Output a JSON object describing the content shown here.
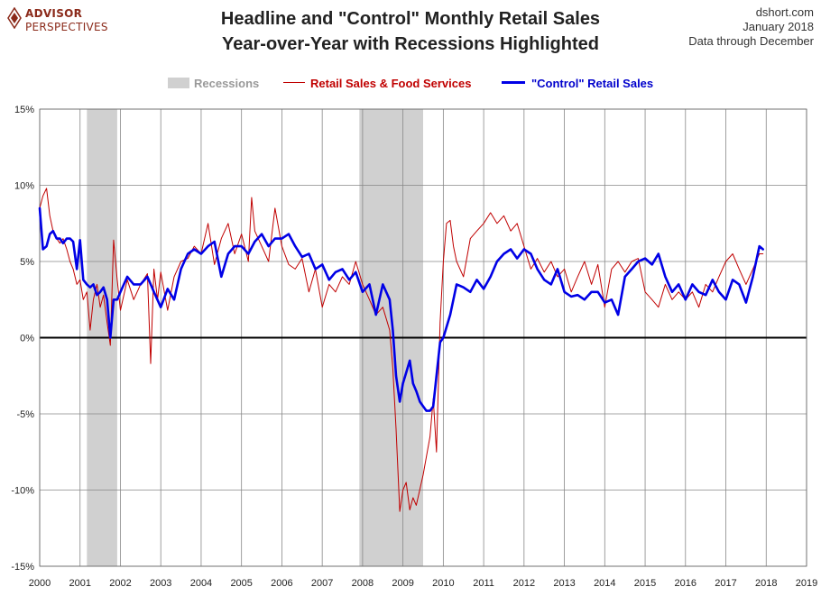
{
  "logo": {
    "line1": "ADVISOR",
    "line2": "PERSPECTIVES",
    "color": "#8b2a1a"
  },
  "header": {
    "title_line1": "Headline and \"Control\" Monthly Retail Sales",
    "title_line2": "Year-over-Year with Recessions Highlighted",
    "source": "dshort.com",
    "date": "January 2018",
    "data_through": "Data through December"
  },
  "legend": {
    "recessions_label": "Recessions",
    "retail_label": "Retail Sales & Food Services",
    "control_label": "\"Control\" Retail Sales"
  },
  "chart_data": {
    "type": "line",
    "title": "Headline and \"Control\" Monthly Retail Sales Year-over-Year with Recessions Highlighted",
    "xlabel": "",
    "ylabel": "",
    "xlim": [
      2000,
      2019
    ],
    "ylim": [
      -15,
      15
    ],
    "y_ticks": [
      15,
      10,
      5,
      0,
      -5,
      -10,
      -15
    ],
    "y_tick_labels": [
      "15%",
      "10%",
      "5%",
      "0%",
      "-5%",
      "-10%",
      "-15%"
    ],
    "x_ticks": [
      2000,
      2001,
      2002,
      2003,
      2004,
      2005,
      2006,
      2007,
      2008,
      2009,
      2010,
      2011,
      2012,
      2013,
      2014,
      2015,
      2016,
      2017,
      2018,
      2019
    ],
    "x_tick_labels": [
      "2000",
      "2001",
      "2002",
      "2003",
      "2004",
      "2005",
      "2006",
      "2007",
      "2008",
      "2009",
      "2010",
      "2011",
      "2012",
      "2013",
      "2014",
      "2015",
      "2016",
      "2017",
      "2018",
      "2019"
    ],
    "grid": true,
    "legend_position": "top-center",
    "recessions": [
      {
        "start": 2001.17,
        "end": 2001.92
      },
      {
        "start": 2007.92,
        "end": 2009.5
      }
    ],
    "colors": {
      "retail": "#c00000",
      "control": "#0000e6",
      "recession": "#d0d0d0",
      "zero_line": "#000000",
      "grid": "#888888"
    },
    "series": [
      {
        "name": "Retail Sales & Food Services",
        "x": [
          2000.0,
          2000.08,
          2000.17,
          2000.25,
          2000.33,
          2000.42,
          2000.5,
          2000.58,
          2000.67,
          2000.75,
          2000.83,
          2000.92,
          2001.0,
          2001.08,
          2001.17,
          2001.25,
          2001.33,
          2001.42,
          2001.5,
          2001.58,
          2001.67,
          2001.75,
          2001.83,
          2001.92,
          2002.0,
          2002.17,
          2002.33,
          2002.5,
          2002.67,
          2002.75,
          2002.83,
          2002.92,
          2003.0,
          2003.17,
          2003.33,
          2003.5,
          2003.67,
          2003.83,
          2004.0,
          2004.17,
          2004.33,
          2004.5,
          2004.67,
          2004.83,
          2005.0,
          2005.17,
          2005.25,
          2005.33,
          2005.5,
          2005.67,
          2005.83,
          2006.0,
          2006.17,
          2006.33,
          2006.5,
          2006.67,
          2006.83,
          2007.0,
          2007.17,
          2007.33,
          2007.5,
          2007.67,
          2007.83,
          2008.0,
          2008.17,
          2008.33,
          2008.5,
          2008.67,
          2008.75,
          2008.83,
          2008.92,
          2009.0,
          2009.08,
          2009.17,
          2009.25,
          2009.33,
          2009.5,
          2009.67,
          2009.75,
          2009.83,
          2009.92,
          2010.0,
          2010.08,
          2010.17,
          2010.25,
          2010.33,
          2010.5,
          2010.67,
          2010.83,
          2011.0,
          2011.17,
          2011.33,
          2011.5,
          2011.67,
          2011.83,
          2012.0,
          2012.17,
          2012.33,
          2012.5,
          2012.67,
          2012.83,
          2013.0,
          2013.17,
          2013.33,
          2013.5,
          2013.67,
          2013.83,
          2014.0,
          2014.17,
          2014.33,
          2014.5,
          2014.67,
          2014.83,
          2015.0,
          2015.17,
          2015.33,
          2015.5,
          2015.67,
          2015.83,
          2016.0,
          2016.17,
          2016.33,
          2016.5,
          2016.67,
          2016.83,
          2017.0,
          2017.17,
          2017.33,
          2017.5,
          2017.67,
          2017.83,
          2017.92
        ],
        "values": [
          8.5,
          9.3,
          9.8,
          8.0,
          7.0,
          6.5,
          6.2,
          6.5,
          5.8,
          5.0,
          4.5,
          3.5,
          3.8,
          2.5,
          3.0,
          0.5,
          2.5,
          3.5,
          2.0,
          2.8,
          1.0,
          -0.5,
          6.4,
          3.8,
          1.8,
          3.8,
          2.5,
          3.5,
          4.2,
          -1.7,
          4.5,
          2.5,
          4.3,
          1.8,
          4.0,
          5.0,
          5.2,
          6.0,
          5.5,
          7.5,
          4.8,
          6.5,
          7.5,
          5.5,
          6.8,
          5.0,
          9.2,
          7.0,
          6.0,
          5.0,
          8.5,
          6.0,
          4.8,
          4.5,
          5.2,
          3.0,
          4.5,
          2.0,
          3.5,
          3.0,
          4.0,
          3.5,
          5.0,
          3.5,
          2.5,
          1.5,
          2.0,
          0.5,
          -2.0,
          -6.0,
          -11.4,
          -10.0,
          -9.5,
          -11.3,
          -10.5,
          -11.0,
          -9.0,
          -6.5,
          -4.0,
          -7.5,
          1.0,
          5.0,
          7.5,
          7.7,
          6.0,
          5.0,
          4.0,
          6.5,
          7.0,
          7.5,
          8.2,
          7.5,
          8.0,
          7.0,
          7.5,
          6.0,
          4.5,
          5.2,
          4.3,
          5.0,
          4.0,
          4.5,
          3.0,
          4.0,
          5.0,
          3.5,
          4.8,
          2.0,
          4.5,
          5.0,
          4.3,
          5.0,
          5.2,
          3.0,
          2.5,
          2.0,
          3.5,
          2.5,
          3.0,
          2.5,
          3.0,
          2.0,
          3.5,
          3.0,
          4.0,
          5.0,
          5.5,
          4.5,
          3.5,
          4.5,
          5.5,
          5.5
        ]
      },
      {
        "name": "\"Control\" Retail Sales",
        "x": [
          2000.0,
          2000.08,
          2000.17,
          2000.25,
          2000.33,
          2000.42,
          2000.5,
          2000.58,
          2000.67,
          2000.75,
          2000.83,
          2000.92,
          2001.0,
          2001.08,
          2001.17,
          2001.25,
          2001.33,
          2001.42,
          2001.5,
          2001.58,
          2001.67,
          2001.75,
          2001.83,
          2001.92,
          2002.0,
          2002.17,
          2002.33,
          2002.5,
          2002.67,
          2002.83,
          2003.0,
          2003.17,
          2003.33,
          2003.5,
          2003.67,
          2003.83,
          2004.0,
          2004.17,
          2004.33,
          2004.5,
          2004.67,
          2004.83,
          2005.0,
          2005.17,
          2005.33,
          2005.5,
          2005.67,
          2005.83,
          2006.0,
          2006.17,
          2006.33,
          2006.5,
          2006.67,
          2006.83,
          2007.0,
          2007.17,
          2007.33,
          2007.5,
          2007.67,
          2007.83,
          2008.0,
          2008.17,
          2008.33,
          2008.5,
          2008.67,
          2008.75,
          2008.83,
          2008.92,
          2009.0,
          2009.08,
          2009.17,
          2009.25,
          2009.33,
          2009.42,
          2009.5,
          2009.58,
          2009.67,
          2009.75,
          2009.83,
          2009.92,
          2010.0,
          2010.17,
          2010.33,
          2010.5,
          2010.67,
          2010.83,
          2011.0,
          2011.17,
          2011.33,
          2011.5,
          2011.67,
          2011.83,
          2012.0,
          2012.17,
          2012.33,
          2012.5,
          2012.67,
          2012.83,
          2013.0,
          2013.17,
          2013.33,
          2013.5,
          2013.67,
          2013.83,
          2014.0,
          2014.17,
          2014.33,
          2014.5,
          2014.67,
          2014.83,
          2015.0,
          2015.17,
          2015.33,
          2015.5,
          2015.67,
          2015.83,
          2016.0,
          2016.17,
          2016.33,
          2016.5,
          2016.67,
          2016.83,
          2017.0,
          2017.17,
          2017.33,
          2017.5,
          2017.67,
          2017.83,
          2017.92
        ],
        "values": [
          8.5,
          5.8,
          6.0,
          6.8,
          7.0,
          6.5,
          6.5,
          6.2,
          6.5,
          6.5,
          6.3,
          4.5,
          6.4,
          3.8,
          3.5,
          3.3,
          3.5,
          2.8,
          3.0,
          3.3,
          2.5,
          0.0,
          2.5,
          2.5,
          3.0,
          4.0,
          3.5,
          3.5,
          4.0,
          3.0,
          2.0,
          3.2,
          2.5,
          4.5,
          5.5,
          5.8,
          5.5,
          6.0,
          6.3,
          4.0,
          5.5,
          6.0,
          6.0,
          5.5,
          6.3,
          6.8,
          6.0,
          6.5,
          6.5,
          6.8,
          6.0,
          5.3,
          5.5,
          4.5,
          4.8,
          3.8,
          4.3,
          4.5,
          3.8,
          4.3,
          3.0,
          3.5,
          1.5,
          3.5,
          2.5,
          0.5,
          -2.5,
          -4.2,
          -3.0,
          -2.3,
          -1.5,
          -3.0,
          -3.5,
          -4.2,
          -4.5,
          -4.8,
          -4.8,
          -4.5,
          -2.5,
          -0.3,
          0.0,
          1.5,
          3.5,
          3.3,
          3.0,
          3.8,
          3.2,
          4.0,
          5.0,
          5.5,
          5.8,
          5.2,
          5.8,
          5.5,
          4.5,
          3.8,
          3.5,
          4.5,
          3.0,
          2.7,
          2.8,
          2.5,
          3.0,
          3.0,
          2.3,
          2.5,
          1.5,
          4.0,
          4.5,
          5.0,
          5.2,
          4.8,
          5.5,
          4.0,
          3.0,
          3.5,
          2.5,
          3.5,
          3.0,
          2.8,
          3.8,
          3.0,
          2.5,
          3.8,
          3.5,
          2.3,
          4.0,
          6.0,
          5.8
        ]
      }
    ]
  }
}
